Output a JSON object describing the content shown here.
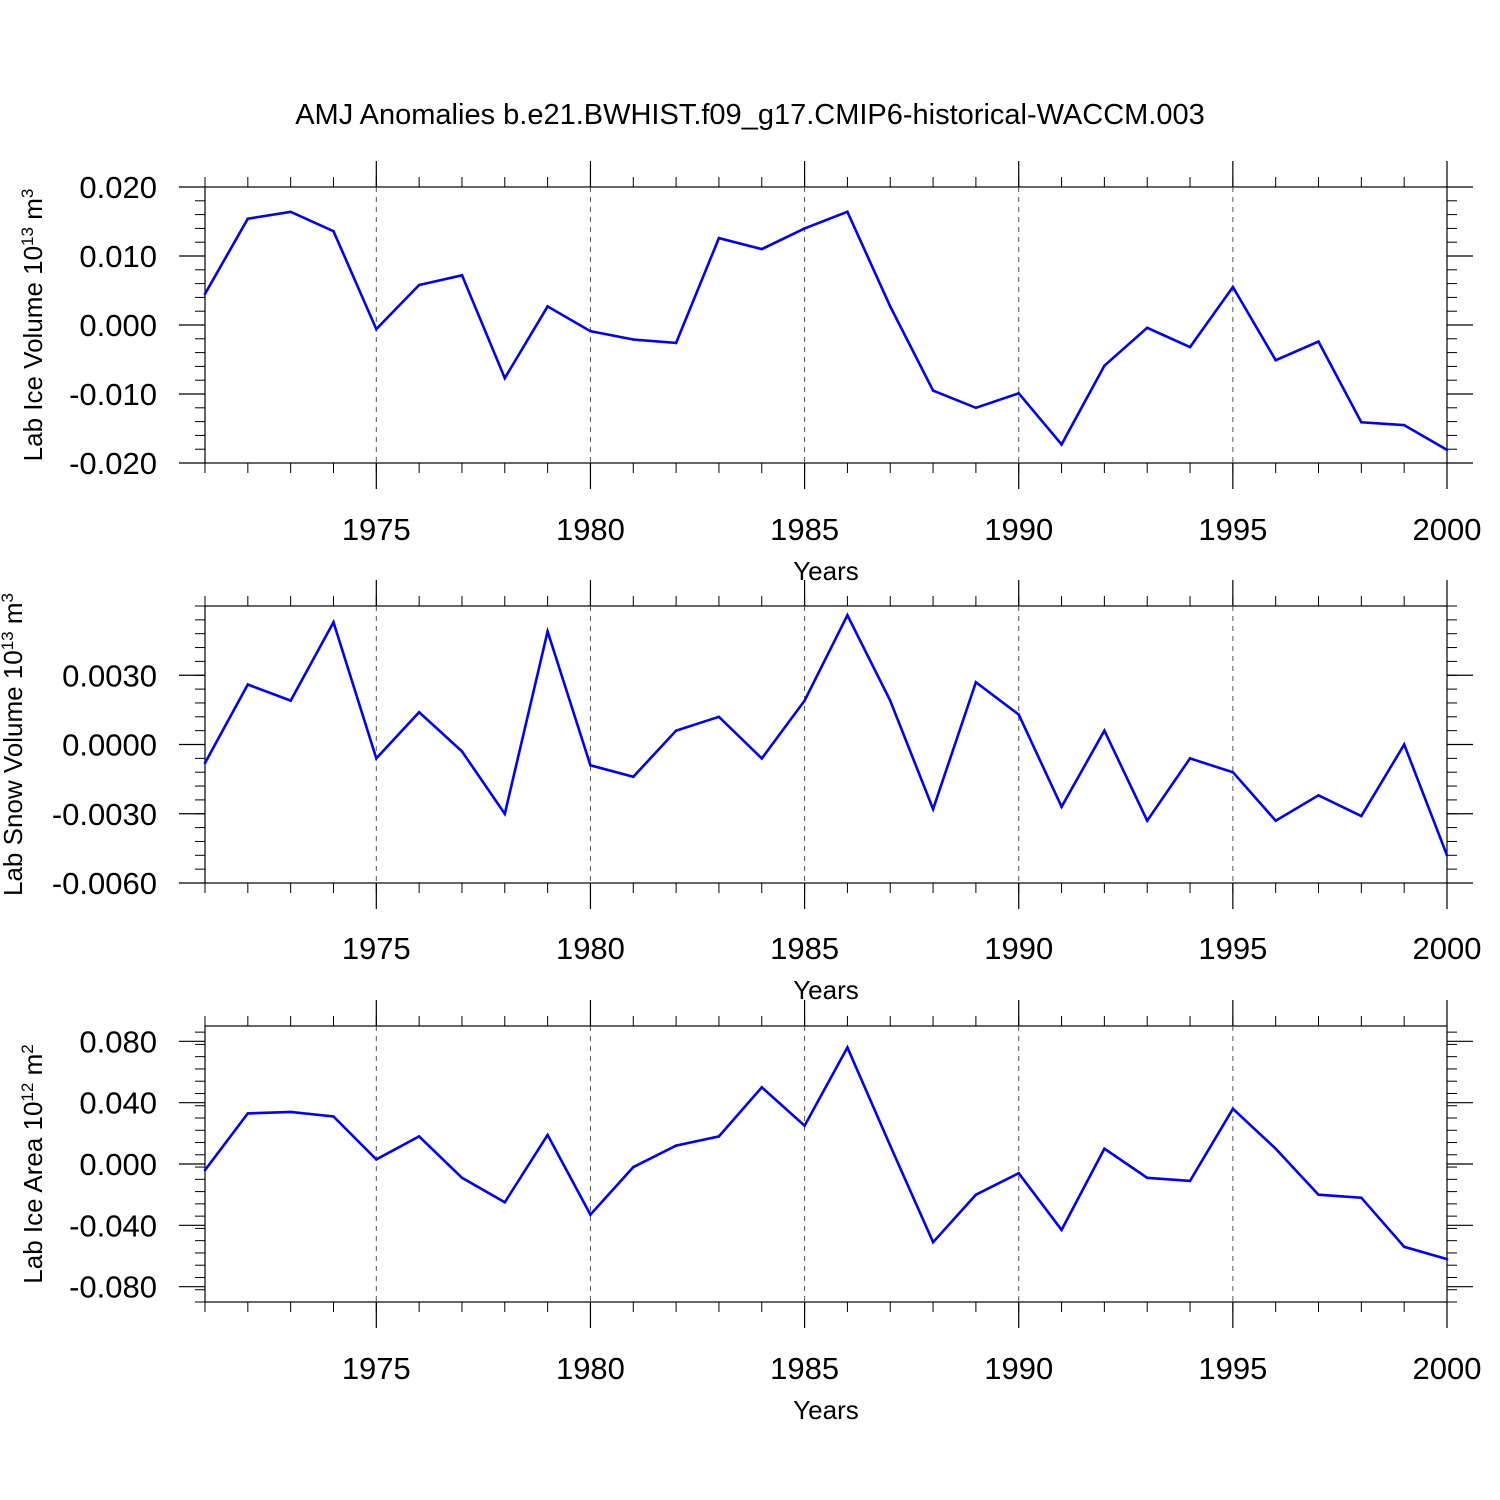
{
  "title": "AMJ Anomalies b.e21.BWHIST.f09_g17.CMIP6-historical-WACCM.003",
  "line_color": "#0000ff",
  "chart_data": [
    {
      "type": "line",
      "ylabel": {
        "text": "Lab Ice Volume 10",
        "sup1": "13",
        "unit": " m",
        "sup2": "3"
      },
      "xlabel": "Years",
      "xlim": [
        1971,
        2000
      ],
      "xticks": [
        1975,
        1980,
        1985,
        1990,
        1995,
        2000
      ],
      "ylim": [
        -0.02,
        0.02
      ],
      "yticks": [
        0.02,
        0.01,
        0.0,
        -0.01,
        -0.02
      ],
      "ytick_labels": [
        "0.020",
        "0.010",
        "0.000",
        "-0.010",
        "-0.020"
      ],
      "x": [
        1971,
        1972,
        1973,
        1974,
        1975,
        1976,
        1977,
        1978,
        1979,
        1980,
        1981,
        1982,
        1983,
        1984,
        1985,
        1986,
        1987,
        1988,
        1989,
        1990,
        1991,
        1992,
        1993,
        1994,
        1995,
        1996,
        1997,
        1998,
        1999,
        2000
      ],
      "values": [
        0.0045,
        0.0154,
        0.0164,
        0.0136,
        -0.0006,
        0.0058,
        0.0072,
        -0.0077,
        0.0027,
        -0.0009,
        -0.0021,
        -0.0026,
        0.0126,
        0.011,
        0.014,
        0.0164,
        0.0027,
        -0.0095,
        -0.012,
        -0.0099,
        -0.0173,
        -0.0059,
        -0.0004,
        -0.0032,
        0.0055,
        -0.0051,
        -0.0024,
        -0.0141,
        -0.0145,
        -0.0181
      ]
    },
    {
      "type": "line",
      "ylabel": {
        "text": "Lab Snow Volume 10",
        "sup1": "13",
        "unit": " m",
        "sup2": "3"
      },
      "xlabel": "Years",
      "xlim": [
        1971,
        2000
      ],
      "xticks": [
        1975,
        1980,
        1985,
        1990,
        1995,
        2000
      ],
      "ylim": [
        -0.006,
        0.006
      ],
      "yticks": [
        0.003,
        0.0,
        -0.003,
        -0.006
      ],
      "ytick_labels": [
        "0.0030",
        "0.0000",
        "-0.0030",
        "-0.0060"
      ],
      "x": [
        1971,
        1972,
        1973,
        1974,
        1975,
        1976,
        1977,
        1978,
        1979,
        1980,
        1981,
        1982,
        1983,
        1984,
        1985,
        1986,
        1987,
        1988,
        1989,
        1990,
        1991,
        1992,
        1993,
        1994,
        1995,
        1996,
        1997,
        1998,
        1999,
        2000
      ],
      "values": [
        -0.0008,
        0.0026,
        0.0019,
        0.0053,
        -0.0006,
        0.0014,
        -0.0003,
        -0.003,
        0.0049,
        -0.0009,
        -0.0014,
        0.0006,
        0.0012,
        -0.0006,
        0.0019,
        0.0056,
        0.0019,
        -0.0028,
        0.0027,
        0.0013,
        -0.0027,
        0.0006,
        -0.0033,
        -0.0006,
        -0.0012,
        -0.0033,
        -0.0022,
        -0.0031,
        0.0,
        -0.0048
      ]
    },
    {
      "type": "line",
      "ylabel": {
        "text": "Lab Ice Area 10",
        "sup1": "12",
        "unit": " m",
        "sup2": "2"
      },
      "xlabel": "Years",
      "xlim": [
        1971,
        2000
      ],
      "xticks": [
        1975,
        1980,
        1985,
        1990,
        1995,
        2000
      ],
      "ylim": [
        -0.09,
        0.09
      ],
      "yticks": [
        0.08,
        0.04,
        0.0,
        -0.04,
        -0.08
      ],
      "ytick_labels": [
        "0.080",
        "0.040",
        "0.000",
        "-0.040",
        "-0.080"
      ],
      "x": [
        1971,
        1972,
        1973,
        1974,
        1975,
        1976,
        1977,
        1978,
        1979,
        1980,
        1981,
        1982,
        1983,
        1984,
        1985,
        1986,
        1987,
        1988,
        1989,
        1990,
        1991,
        1992,
        1993,
        1994,
        1995,
        1996,
        1997,
        1998,
        1999,
        2000
      ],
      "values": [
        -0.004,
        0.033,
        0.034,
        0.031,
        0.003,
        0.018,
        -0.009,
        -0.025,
        0.019,
        -0.033,
        -0.002,
        0.012,
        0.018,
        0.05,
        0.025,
        0.076,
        0.012,
        -0.051,
        -0.02,
        -0.006,
        -0.043,
        0.01,
        -0.009,
        -0.011,
        0.036,
        0.01,
        -0.02,
        -0.022,
        -0.054,
        -0.062
      ]
    }
  ]
}
